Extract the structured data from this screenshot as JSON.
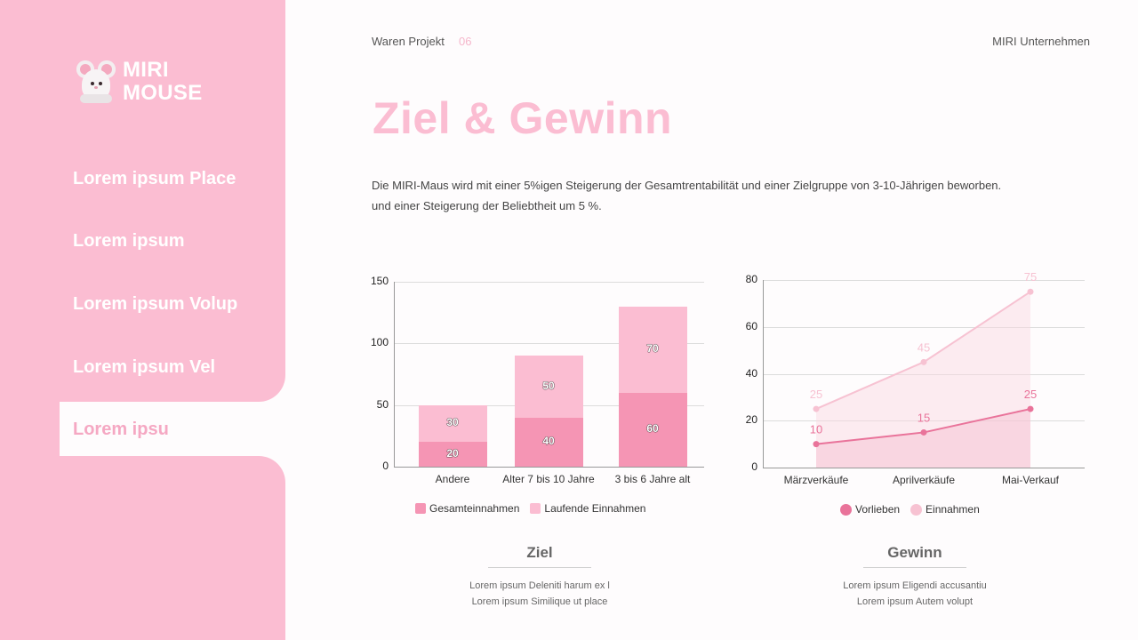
{
  "sidebar": {
    "brand": {
      "line1": "MIRI",
      "line2": "MOUSE",
      "logo_icon": "mouse-mascot-icon"
    },
    "items": [
      {
        "label": "Lorem ipsum Place",
        "active": false
      },
      {
        "label": "Lorem ipsum",
        "active": false
      },
      {
        "label": "Lorem ipsum Volup",
        "active": false
      },
      {
        "label": "Lorem ipsum Vel",
        "active": false
      },
      {
        "label": "Lorem ipsu",
        "active": true
      }
    ]
  },
  "header": {
    "project": "Waren Projekt",
    "page_number": "06",
    "company": "MIRI Unternehmen"
  },
  "main": {
    "title": "Ziel & Gewinn",
    "description_line1": "Die MIRI-Maus wird mit einer 5%igen Steigerung der Gesamtrentabilität und einer Zielgruppe von 3-10-Jährigen beworben.",
    "description_line2": "und einer Steigerung der Beliebtheit um 5 %."
  },
  "captions": {
    "left": {
      "title": "Ziel",
      "line1": "Lorem ipsum Deleniti harum ex l",
      "line2": "Lorem ipsum Similique ut place"
    },
    "right": {
      "title": "Gewinn",
      "line1": "Lorem ipsum Eligendi accusantiu",
      "line2": "Lorem ipsum Autem volupt"
    }
  },
  "colors": {
    "sidebar_bg": "#fbbdd2",
    "accent_pink": "#fbbdd2",
    "bar_dark": "#f595b4",
    "bar_light": "#fbbdd2",
    "line_dark": "#e9739a",
    "line_light": "#f7c2d2"
  },
  "chart_data": [
    {
      "type": "bar",
      "stacked": true,
      "title": "",
      "xlabel": "",
      "ylabel": "",
      "categories": [
        "Andere",
        "Alter 7 bis 10 Jahre",
        "3 bis 6 Jahre alt"
      ],
      "series": [
        {
          "name": "Gesamteinnahmen",
          "values": [
            20,
            40,
            60
          ],
          "color": "#f595b4"
        },
        {
          "name": "Laufende Einnahmen",
          "values": [
            30,
            50,
            70
          ],
          "color": "#fbbdd2"
        }
      ],
      "yticks": [
        0,
        50,
        100,
        150
      ],
      "ylim": [
        0,
        150
      ],
      "grid": true,
      "legend_position": "bottom"
    },
    {
      "type": "area",
      "title": "",
      "xlabel": "",
      "ylabel": "",
      "categories": [
        "Märzverkäufe",
        "Aprilverkäufe",
        "Mai-Verkauf"
      ],
      "series": [
        {
          "name": "Vorlieben",
          "values": [
            10,
            15,
            25
          ],
          "color": "#e9739a"
        },
        {
          "name": "Einnahmen",
          "values": [
            25,
            45,
            75
          ],
          "color": "#f7c2d2"
        }
      ],
      "yticks": [
        0,
        20,
        40,
        60,
        80
      ],
      "ylim": [
        0,
        80
      ],
      "grid": true,
      "legend_position": "bottom"
    }
  ]
}
